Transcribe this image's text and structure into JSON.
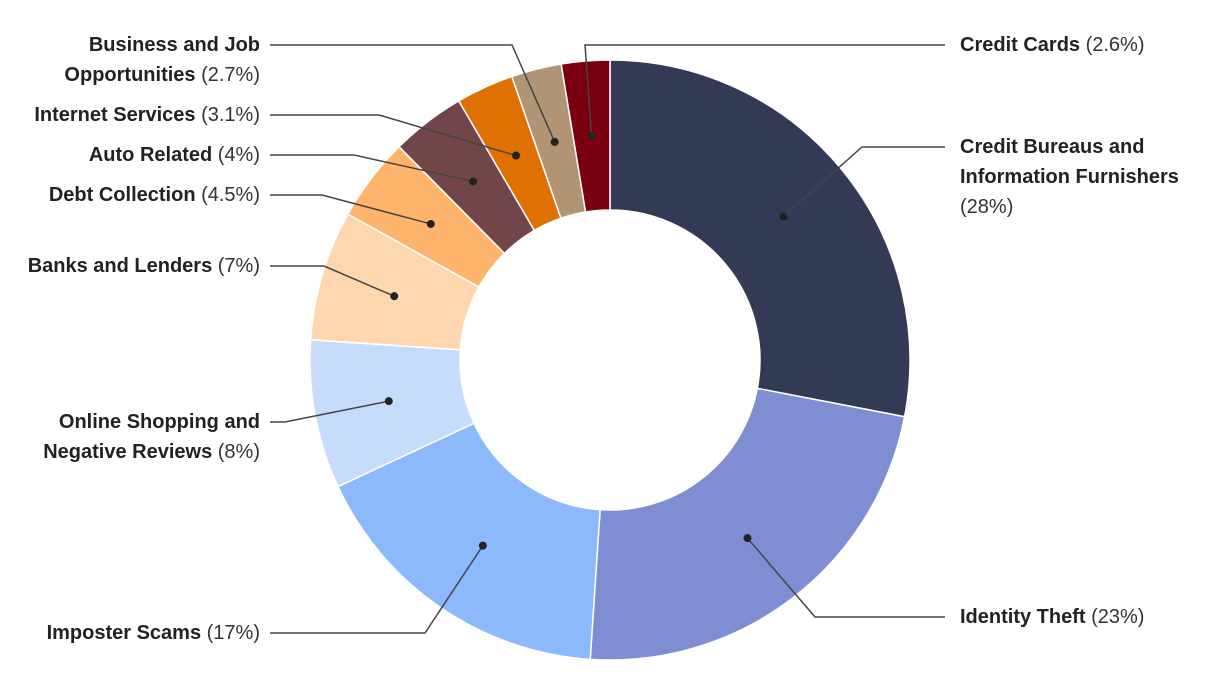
{
  "chart_data": {
    "type": "donut",
    "categories": [
      "Credit Bureaus and Information Furnishers",
      "Identity Theft",
      "Imposter Scams",
      "Online Shopping and Negative Reviews",
      "Banks and Lenders",
      "Debt Collection",
      "Auto Related",
      "Internet Services",
      "Business and Job Opportunities",
      "Credit Cards"
    ],
    "values": [
      28,
      23,
      17,
      8,
      7,
      4.5,
      4,
      3.1,
      2.7,
      2.6
    ],
    "value_labels": [
      "(28%)",
      "(23%)",
      "(17%)",
      "(8%)",
      "(7%)",
      "(4.5%)",
      "(4%)",
      "(3.1%)",
      "(2.7%)",
      "(2.6%)"
    ],
    "colors": [
      "#333a56",
      "#7f8dd2",
      "#8cb8fc",
      "#c6dcfc",
      "#fed7ae",
      "#feb46a",
      "#72454a",
      "#e07000",
      "#b09474",
      "#7a0010"
    ]
  }
}
